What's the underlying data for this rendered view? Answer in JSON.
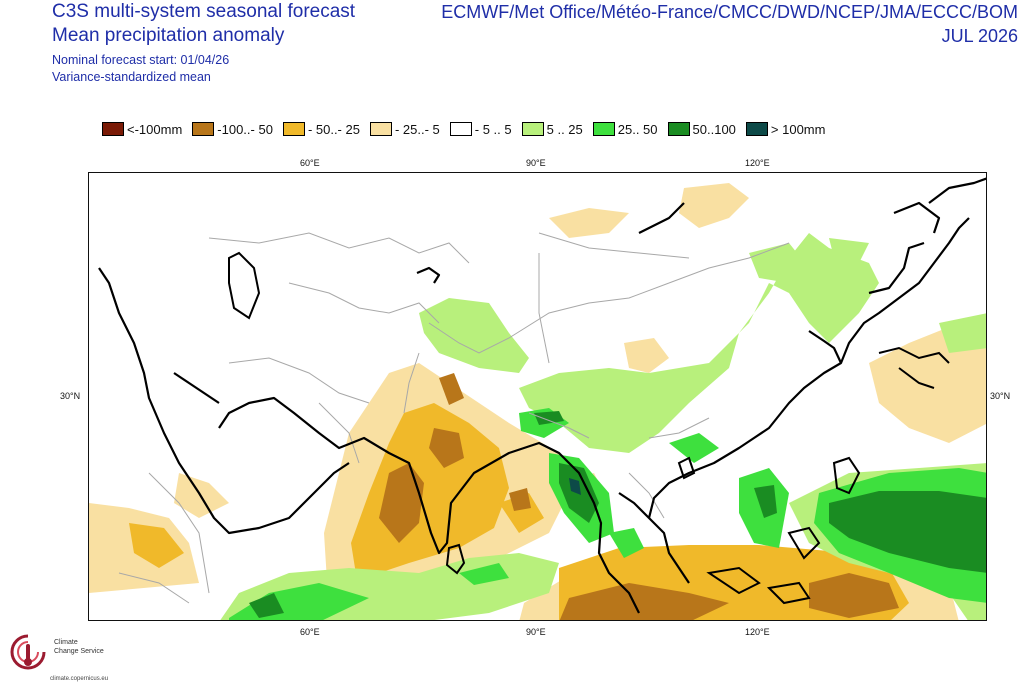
{
  "header": {
    "title_line1": "C3S multi-system seasonal forecast",
    "title_line2": "Mean precipitation anomaly",
    "nominal_start": "Nominal forecast start: 01/04/26",
    "method": "Variance-standardized mean",
    "centres": "ECMWF/Met Office/Météo-France/CMCC/DWD/NCEP/JMA/ECCC/BOM",
    "valid_month": "JUL 2026"
  },
  "legend": [
    {
      "label": "<-100mm",
      "color": "#7a1a06"
    },
    {
      "label": "-100..- 50",
      "color": "#b8761a"
    },
    {
      "label": "- 50..- 25",
      "color": "#f0b92a"
    },
    {
      "label": "- 25..- 5",
      "color": "#f9e0a2"
    },
    {
      "label": "- 5 .. 5",
      "color": "#ffffff"
    },
    {
      "label": "5 .. 25",
      "color": "#b8f07c"
    },
    {
      "label": "25.. 50",
      "color": "#3ee03e"
    },
    {
      "label": "50..100",
      "color": "#1a8c22"
    },
    {
      "label": "> 100mm",
      "color": "#0d4a48"
    }
  ],
  "axes": {
    "top_lon_ticks": [
      "60°E",
      "90°E",
      "120°E"
    ],
    "bottom_lon_ticks": [
      "60°E",
      "90°E",
      "120°E"
    ],
    "left_lat_tick": "30°N",
    "right_lat_tick": "30°N"
  },
  "map": {
    "region": "Asia / Indian Ocean / Western Pacific"
  },
  "logo": {
    "line1": "Climate",
    "line2": "Change Service",
    "url": "climate.copernicus.eu"
  },
  "colors": {
    "title": "#1f2ea8",
    "coast": "#000000",
    "border": "#a8a8a8"
  }
}
